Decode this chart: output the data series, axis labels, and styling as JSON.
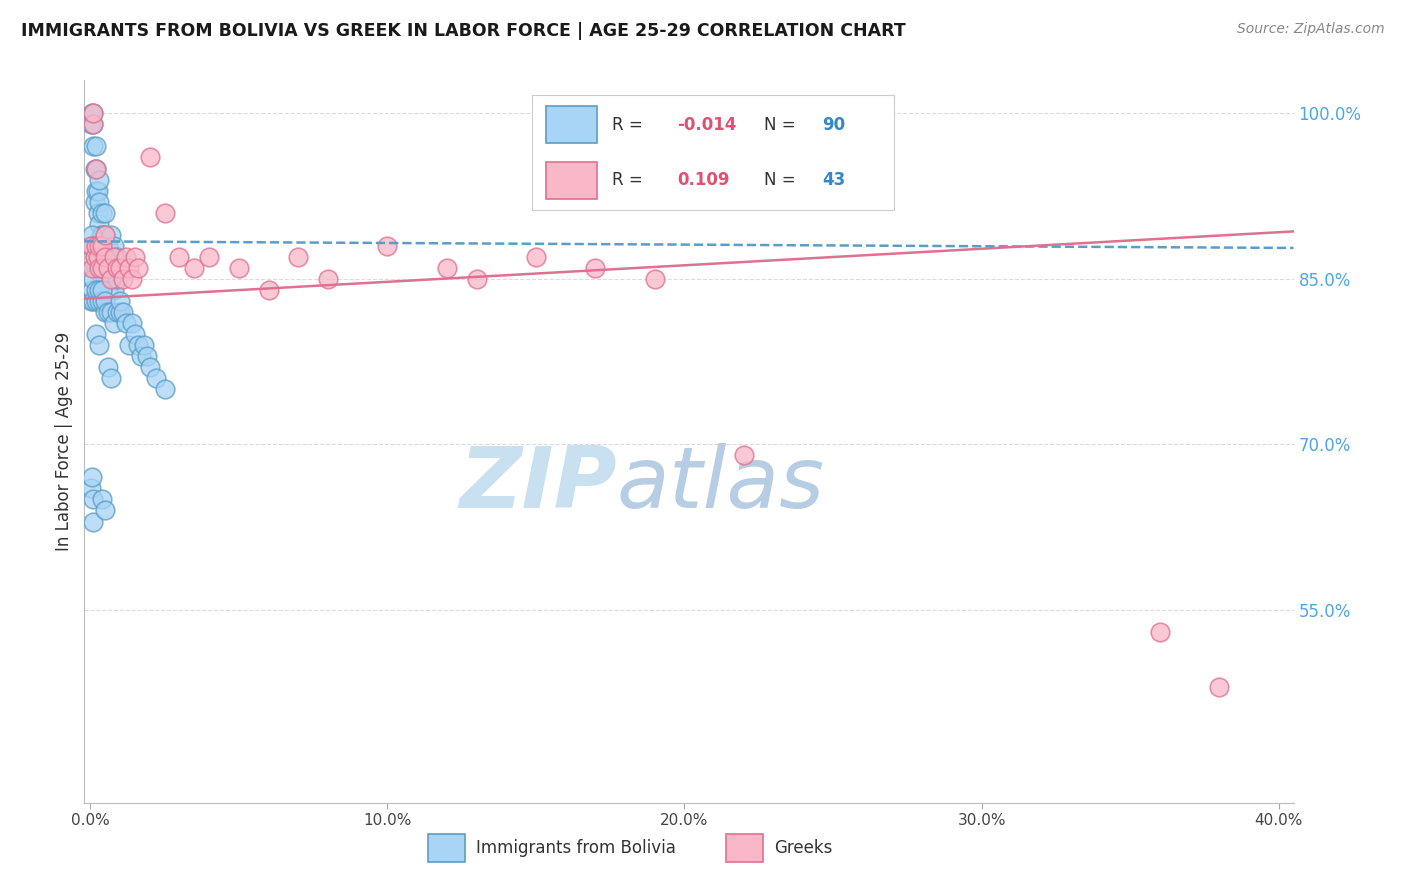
{
  "title": "IMMIGRANTS FROM BOLIVIA VS GREEK IN LABOR FORCE | AGE 25-29 CORRELATION CHART",
  "source": "Source: ZipAtlas.com",
  "ylabel": "In Labor Force | Age 25-29",
  "legend_label1": "Immigrants from Bolivia",
  "legend_label2": "Greeks",
  "R1_val": "-0.014",
  "N1_val": "90",
  "R2_val": "0.109",
  "N2_val": "43",
  "color_blue_face": "#a8d4f5",
  "color_blue_edge": "#5a9dc8",
  "color_pink_face": "#f9b8c8",
  "color_pink_edge": "#e07090",
  "color_line_blue": "#5a9dc8",
  "color_line_pink": "#e07090",
  "color_right_tick": "#4da6e8",
  "color_grid": "#cccccc",
  "right_yticks": [
    0.55,
    0.7,
    0.85,
    1.0
  ],
  "right_yticklabels": [
    "55.0%",
    "70.0%",
    "85.0%",
    "100.0%"
  ],
  "xlim_min": -0.002,
  "xlim_max": 0.405,
  "ylim_min": 0.375,
  "ylim_max": 1.03,
  "bolivia_x": [
    0.0003,
    0.0005,
    0.001,
    0.001,
    0.001,
    0.0015,
    0.0015,
    0.002,
    0.002,
    0.002,
    0.0025,
    0.0025,
    0.003,
    0.003,
    0.003,
    0.003,
    0.0035,
    0.004,
    0.004,
    0.004,
    0.005,
    0.005,
    0.005,
    0.006,
    0.006,
    0.007,
    0.007,
    0.008,
    0.008,
    0.009,
    0.0003,
    0.0005,
    0.001,
    0.001,
    0.0015,
    0.002,
    0.002,
    0.0025,
    0.003,
    0.003,
    0.003,
    0.004,
    0.004,
    0.005,
    0.005,
    0.006,
    0.006,
    0.007,
    0.008,
    0.009,
    0.0003,
    0.0005,
    0.001,
    0.001,
    0.002,
    0.002,
    0.003,
    0.003,
    0.004,
    0.004,
    0.005,
    0.005,
    0.006,
    0.007,
    0.008,
    0.009,
    0.01,
    0.01,
    0.011,
    0.012,
    0.013,
    0.014,
    0.015,
    0.016,
    0.017,
    0.018,
    0.019,
    0.02,
    0.022,
    0.025,
    0.0003,
    0.0005,
    0.001,
    0.001,
    0.002,
    0.003,
    0.004,
    0.005,
    0.006,
    0.007
  ],
  "bolivia_y": [
    0.99,
    1.0,
    0.97,
    0.99,
    1.0,
    0.92,
    0.95,
    0.93,
    0.95,
    0.97,
    0.91,
    0.93,
    0.88,
    0.9,
    0.92,
    0.94,
    0.89,
    0.87,
    0.89,
    0.91,
    0.87,
    0.89,
    0.91,
    0.86,
    0.88,
    0.87,
    0.89,
    0.86,
    0.88,
    0.87,
    0.88,
    0.89,
    0.86,
    0.88,
    0.87,
    0.86,
    0.88,
    0.87,
    0.86,
    0.88,
    0.87,
    0.85,
    0.87,
    0.85,
    0.86,
    0.84,
    0.86,
    0.85,
    0.84,
    0.85,
    0.83,
    0.84,
    0.83,
    0.85,
    0.83,
    0.84,
    0.83,
    0.84,
    0.83,
    0.84,
    0.82,
    0.83,
    0.82,
    0.82,
    0.81,
    0.82,
    0.82,
    0.83,
    0.82,
    0.81,
    0.79,
    0.81,
    0.8,
    0.79,
    0.78,
    0.79,
    0.78,
    0.77,
    0.76,
    0.75,
    0.66,
    0.67,
    0.63,
    0.65,
    0.8,
    0.79,
    0.65,
    0.64,
    0.77,
    0.76
  ],
  "greeks_x": [
    0.0003,
    0.0005,
    0.001,
    0.001,
    0.0015,
    0.002,
    0.002,
    0.0025,
    0.003,
    0.003,
    0.004,
    0.004,
    0.005,
    0.005,
    0.006,
    0.007,
    0.008,
    0.009,
    0.01,
    0.011,
    0.012,
    0.013,
    0.014,
    0.015,
    0.016,
    0.02,
    0.025,
    0.03,
    0.035,
    0.04,
    0.05,
    0.06,
    0.07,
    0.08,
    0.1,
    0.12,
    0.13,
    0.15,
    0.17,
    0.19,
    0.22,
    0.36,
    0.38
  ],
  "greeks_y": [
    0.88,
    0.86,
    0.99,
    1.0,
    0.87,
    0.88,
    0.95,
    0.87,
    0.86,
    0.88,
    0.86,
    0.88,
    0.87,
    0.89,
    0.86,
    0.85,
    0.87,
    0.86,
    0.86,
    0.85,
    0.87,
    0.86,
    0.85,
    0.87,
    0.86,
    0.96,
    0.91,
    0.87,
    0.86,
    0.87,
    0.86,
    0.84,
    0.87,
    0.85,
    0.88,
    0.86,
    0.85,
    0.87,
    0.86,
    0.85,
    0.69,
    0.53,
    0.48
  ],
  "trend_blue_y0": 0.884,
  "trend_blue_y1": 0.878,
  "trend_pink_y0": 0.832,
  "trend_pink_y1": 0.893,
  "watermark_text": "ZIPatlas",
  "watermark_color": "#c8e0f0",
  "background_color": "#ffffff"
}
